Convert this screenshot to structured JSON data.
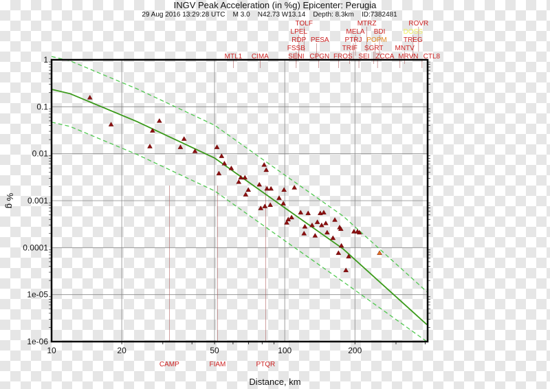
{
  "chart_data": {
    "type": "scatter",
    "title": "INGV Peak Acceleration (in %g) Epicenter: Perugia",
    "subtitle": "29 Aug 2016 13:29:28 UTC    M 3.0    N42.73 W13.14    Depth: 8.3km    ID:7382481",
    "xlabel": "Distance, km",
    "ylabel": "% g",
    "xscale": "log",
    "yscale": "log",
    "xlim": [
      10,
      410
    ],
    "ylim": [
      1e-06,
      1
    ],
    "xticks": [
      {
        "v": 10,
        "label": "10"
      },
      {
        "v": 20,
        "label": "20"
      },
      {
        "v": 50,
        "label": "50"
      },
      {
        "v": 100,
        "label": "100"
      },
      {
        "v": 200,
        "label": "200"
      }
    ],
    "yticks": [
      {
        "v": 1,
        "label": "1"
      },
      {
        "v": 0.1,
        "label": "0.1"
      },
      {
        "v": 0.01,
        "label": "0.01"
      },
      {
        "v": 0.001,
        "label": "0.001"
      },
      {
        "v": 0.0001,
        "label": "0.0001"
      },
      {
        "v": 1e-05,
        "label": "1e-05"
      },
      {
        "v": 1e-06,
        "label": "1e-06"
      }
    ],
    "grid": true,
    "colors": {
      "observed": "#8b1010",
      "highlight": "#e07020",
      "median": "#3a9a1a",
      "bounds": "#50c850",
      "label": "#cc2222",
      "label_orange": "#e08a20",
      "label_yellow": "#f0f060"
    },
    "curves": {
      "median": {
        "x": [
          10,
          12,
          23.3,
          50,
          101,
          178,
          407
        ],
        "y": [
          0.235,
          0.19,
          0.048,
          0.0081,
          0.00068,
          9.4e-05,
          2.3e-06
        ]
      },
      "upper_factor": 5,
      "lower_factor": 0.2
    },
    "observed": {
      "x": [
        14.6,
        18,
        27.1,
        26.4,
        29,
        35.7,
        41.2,
        37,
        51.2,
        53.6,
        55.1,
        52.2,
        59,
        63.5,
        64.8,
        67.5,
        68,
        69.8,
        77.8,
        81.6,
        83.3,
        78.9,
        82.2,
        86.7,
        83.9,
        87.3,
        99.3,
        110,
        94.6,
        98.6,
        103.5,
        107,
        102,
        117,
        122,
        121,
        126,
        131,
        142,
        147,
        138,
        144,
        135,
        150,
        164,
        172,
        152,
        161,
        174,
        175,
        188,
        183,
        205,
        198,
        209,
        170
      ],
      "y": [
        0.157,
        0.042,
        0.031,
        0.0143,
        0.05,
        0.0138,
        0.0113,
        0.0207,
        0.0138,
        0.0089,
        0.0062,
        0.0038,
        0.0049,
        0.0025,
        0.0031,
        0.0031,
        0.00135,
        0.0017,
        0.0022,
        0.0058,
        0.0045,
        0.00069,
        0.00076,
        0.00081,
        0.0018,
        0.0018,
        0.0017,
        0.0019,
        0.00114,
        0.00087,
        0.0004,
        0.00044,
        0.00034,
        0.00056,
        0.00028,
        0.0002,
        0.00054,
        0.0003,
        0.00054,
        0.00056,
        0.00035,
        0.0003,
        0.00018,
        0.00033,
        0.00039,
        0.00027,
        0.00021,
        0.00016,
        0.00025,
        0.00011,
        6.5e-05,
        3.3e-05,
        0.00022,
        0.00022,
        0.00021,
        7.7e-05
      ]
    },
    "highlighted": {
      "x": [
        255
      ],
      "y": [
        7.7e-05
      ]
    },
    "top_stations": [
      {
        "name": "MTL1",
        "d": 60.2,
        "row": 0,
        "c": "label"
      },
      {
        "name": "CIMA",
        "d": 78.4,
        "row": 0,
        "c": "label"
      },
      {
        "name": "SENI",
        "d": 112,
        "row": 0,
        "c": "label"
      },
      {
        "name": "CPGN",
        "d": 140,
        "row": 0,
        "c": "label"
      },
      {
        "name": "FROS",
        "d": 170,
        "row": 0,
        "c": "label"
      },
      {
        "name": "SEI",
        "d": 208,
        "row": 0,
        "c": "label"
      },
      {
        "name": "ZCCA",
        "d": 250,
        "row": 0,
        "c": "label"
      },
      {
        "name": "MRVN",
        "d": 312,
        "row": 0,
        "c": "label"
      },
      {
        "name": "CTL8",
        "d": 388,
        "row": 0,
        "c": "label"
      },
      {
        "name": "FSSB",
        "d": 112,
        "row": 1,
        "c": "label"
      },
      {
        "name": "TRIF",
        "d": 190,
        "row": 1,
        "c": "label"
      },
      {
        "name": "SGRT",
        "d": 241,
        "row": 1,
        "c": "label"
      },
      {
        "name": "MNTV",
        "d": 327,
        "row": 1,
        "c": "label"
      },
      {
        "name": "RDP",
        "d": 115,
        "row": 2,
        "c": "label"
      },
      {
        "name": "PESA",
        "d": 137,
        "row": 2,
        "c": "label"
      },
      {
        "name": "PTRJ",
        "d": 197,
        "row": 2,
        "c": "label"
      },
      {
        "name": "POPM",
        "d": 244,
        "row": 2,
        "c": "label_orange"
      },
      {
        "name": "TREG",
        "d": 355,
        "row": 2,
        "c": "label"
      },
      {
        "name": "LPEL",
        "d": 115,
        "row": 3,
        "c": "label"
      },
      {
        "name": "MELA",
        "d": 201,
        "row": 3,
        "c": "label"
      },
      {
        "name": "BDI",
        "d": 255,
        "row": 3,
        "c": "label"
      },
      {
        "name": "DOSS",
        "d": 355,
        "row": 3,
        "c": "label_yellow"
      },
      {
        "name": "TOLF",
        "d": 121,
        "row": 4,
        "c": "label"
      },
      {
        "name": "MTRZ",
        "d": 225,
        "row": 4,
        "c": "label"
      },
      {
        "name": "ROVR",
        "d": 375,
        "row": 4,
        "c": "label"
      }
    ],
    "bottom_stations": [
      {
        "name": "CAMP",
        "d": 32
      },
      {
        "name": "FIAM",
        "d": 51.5
      },
      {
        "name": "PTQR",
        "d": 82.8
      }
    ]
  }
}
